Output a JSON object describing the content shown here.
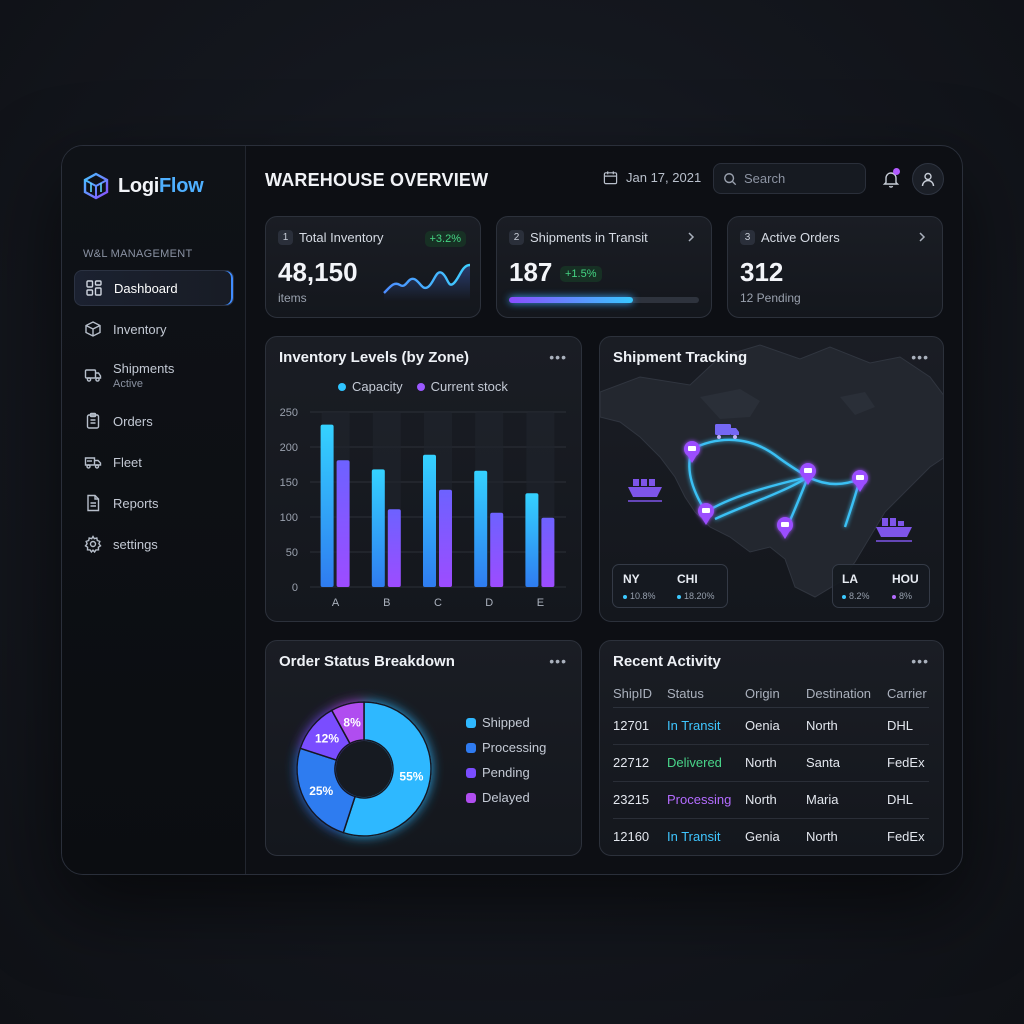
{
  "app": {
    "brand_prefix": "Logi",
    "brand_suffix": "Flow",
    "section_label": "W&L MANAGEMENT"
  },
  "sidebar": {
    "items": [
      {
        "label": "Dashboard",
        "icon": "dashboard-icon",
        "active": true
      },
      {
        "label": "Inventory",
        "icon": "box-icon"
      },
      {
        "label": "Shipments",
        "sub": "Active",
        "icon": "truck-icon"
      },
      {
        "label": "Orders",
        "icon": "clipboard-icon"
      },
      {
        "label": "Fleet",
        "icon": "fleet-icon"
      },
      {
        "label": "Reports",
        "icon": "report-icon"
      },
      {
        "label": "settings",
        "icon": "gear-icon"
      }
    ]
  },
  "header": {
    "title": "WAREHOUSE OVERVIEW",
    "date": "Jan 17, 2021",
    "search_placeholder": "Search"
  },
  "kpis": [
    {
      "num": "1",
      "label": "Total Inventory",
      "value": "48,150",
      "sub": "items",
      "badge": "+3.2%"
    },
    {
      "num": "2",
      "label": "Shipments in Transit",
      "value": "187",
      "badge": "+1.5%",
      "progress": 0.65
    },
    {
      "num": "3",
      "label": "Active Orders",
      "value": "312",
      "sub": "12 Pending"
    }
  ],
  "inventory_card": {
    "title": "Inventory Levels (by Zone)",
    "more": "•••"
  },
  "chart_data": {
    "type": "bar",
    "categories": [
      "A",
      "B",
      "C",
      "D",
      "E"
    ],
    "series": [
      {
        "name": "Capacity",
        "values": [
          232,
          168,
          189,
          166,
          134
        ]
      },
      {
        "name": "Current stock",
        "values": [
          181,
          111,
          139,
          106,
          99
        ]
      }
    ],
    "ylim": [
      0,
      250
    ],
    "yticks": [
      0,
      50,
      100,
      150,
      200,
      250
    ],
    "legend": "top",
    "colors": {
      "capacity": "#2fc4ff",
      "stock": "#9b59ff"
    }
  },
  "tracking": {
    "title": "Shipment Tracking",
    "more": "•••",
    "cities_left": [
      {
        "name": "NY",
        "pct": "10.8%"
      },
      {
        "name": "CHI",
        "pct": "18.20%"
      }
    ],
    "cities_right": [
      {
        "name": "LA",
        "pct": "8.2%"
      },
      {
        "name": "HOU",
        "pct": "8%"
      }
    ]
  },
  "orders": {
    "title": "Order Status Breakdown",
    "more": "•••",
    "slices": [
      {
        "label": "Shipped",
        "value": 55,
        "text": "55%",
        "color": "#2fb8ff"
      },
      {
        "label": "Processing",
        "value": 25,
        "text": "25%",
        "color": "#2f7bf0"
      },
      {
        "label": "Pending",
        "value": 12,
        "text": "12%",
        "color": "#7a4dff"
      },
      {
        "label": "Delayed",
        "value": 8,
        "text": "8%",
        "color": "#b04ef0"
      }
    ]
  },
  "activity": {
    "title": "Recent Activity",
    "more": "•••",
    "columns": [
      "ShipID",
      "Status",
      "Origin",
      "Destination",
      "Carrier"
    ],
    "rows": [
      [
        "12701",
        "In Transit",
        "Oenia",
        "North",
        "DHL"
      ],
      [
        "22712",
        "Delivered",
        "North",
        "Santa",
        "FedEx"
      ],
      [
        "23215",
        "Processing",
        "North",
        "Maria",
        "DHL"
      ],
      [
        "12160",
        "In Transit",
        "Genia",
        "North",
        "FedEx"
      ]
    ],
    "status_colors": {
      "In Transit": "#3fc6ff",
      "Delivered": "#49d68a",
      "Processing": "#b46cff"
    }
  }
}
